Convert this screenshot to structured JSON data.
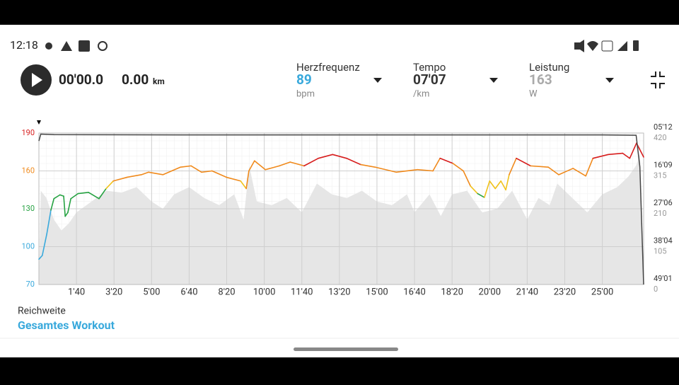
{
  "status_bar": {
    "time": "12:18"
  },
  "controls": {
    "elapsed": "00'00.0",
    "distance": "0.00",
    "distance_unit": "km"
  },
  "metrics": [
    {
      "label": "Herzfrequenz",
      "value": "89",
      "unit": "bpm"
    },
    {
      "label": "Tempo",
      "value": "07'07",
      "unit": "/km"
    },
    {
      "label": "Leistung",
      "value": "163",
      "unit": "W"
    }
  ],
  "chart_data": {
    "type": "line",
    "xlim": [
      0,
      1610
    ],
    "xticks": [
      {
        "value": 100,
        "label": "1'40"
      },
      {
        "value": 200,
        "label": "3'20"
      },
      {
        "value": 300,
        "label": "5'00"
      },
      {
        "value": 400,
        "label": "6'40"
      },
      {
        "value": 500,
        "label": "8'20"
      },
      {
        "value": 600,
        "label": "10'00"
      },
      {
        "value": 700,
        "label": "11'40"
      },
      {
        "value": 800,
        "label": "13'20"
      },
      {
        "value": 900,
        "label": "15'00"
      },
      {
        "value": 1000,
        "label": "16'40"
      },
      {
        "value": 1100,
        "label": "18'20"
      },
      {
        "value": 1200,
        "label": "20'00"
      },
      {
        "value": 1300,
        "label": "21'40"
      },
      {
        "value": 1400,
        "label": "23'20"
      },
      {
        "value": 1500,
        "label": "25'00"
      }
    ],
    "ylim": [
      70,
      190
    ],
    "yticks": [
      70,
      100,
      130,
      160,
      190
    ],
    "y2lim": [
      0,
      420
    ],
    "y2ticks": [
      0,
      105,
      210,
      315,
      420
    ],
    "y3lim": [
      2941,
      312
    ],
    "y3ticks": [
      {
        "value": 2941,
        "label": "49'01"
      },
      {
        "value": 2284,
        "label": "38'04"
      },
      {
        "value": 1626,
        "label": "27'06"
      },
      {
        "value": 969,
        "label": "16'09"
      },
      {
        "value": 312,
        "label": "05'12"
      }
    ],
    "grid": true,
    "zones": [
      {
        "from": 70,
        "color": "#39a9dc"
      },
      {
        "from": 120,
        "color": "#26a242"
      },
      {
        "from": 145,
        "color": "#f1c21b"
      },
      {
        "from": 153,
        "color": "#f08a1c"
      },
      {
        "from": 166,
        "color": "#d71d1d"
      }
    ],
    "series": [
      {
        "x": [
          0,
          9,
          21,
          32,
          40,
          56,
          66,
          70,
          77,
          85,
          104,
          132,
          160,
          179,
          198,
          235,
          273,
          292,
          330,
          377,
          405,
          433,
          461,
          499,
          537,
          552,
          559,
          574,
          603,
          640,
          669,
          706,
          744,
          782,
          819,
          857,
          895,
          951,
          1008,
          1049,
          1068,
          1102,
          1130,
          1149,
          1168,
          1186,
          1200,
          1215,
          1230,
          1243,
          1252,
          1271,
          1309,
          1356,
          1384,
          1422,
          1456,
          1475,
          1516,
          1554,
          1573,
          1591,
          1610
        ],
        "values": [
          90,
          93,
          110,
          129,
          138,
          141,
          140,
          124,
          127,
          138,
          142,
          143,
          138,
          146,
          152,
          155,
          157,
          159,
          157,
          163,
          164,
          159,
          160,
          155,
          152,
          146,
          160,
          168,
          161,
          164,
          167,
          164,
          170,
          173,
          170,
          165,
          163,
          159,
          161,
          160,
          170,
          166,
          160,
          148,
          142,
          139,
          152,
          146,
          152,
          145,
          157,
          170,
          164,
          163,
          157,
          162,
          156,
          170,
          173,
          174,
          170,
          182,
          171
        ]
      },
      {
        "axis": "y2",
        "color": "#e6e6e6",
        "x": [
          0,
          5,
          20,
          40,
          60,
          80,
          100,
          140,
          180,
          220,
          260,
          300,
          330,
          360,
          400,
          440,
          480,
          520,
          545,
          560,
          580,
          620,
          660,
          700,
          740,
          780,
          820,
          860,
          900,
          940,
          980,
          1000,
          1040,
          1070,
          1100,
          1140,
          1180,
          1220,
          1260,
          1300,
          1330,
          1360,
          1380,
          1420,
          1460,
          1500,
          1540,
          1570,
          1590,
          1600,
          1610
        ],
        "values": [
          0,
          260,
          240,
          180,
          150,
          170,
          200,
          230,
          260,
          255,
          270,
          230,
          210,
          250,
          270,
          240,
          220,
          250,
          180,
          330,
          230,
          220,
          240,
          200,
          280,
          250,
          240,
          260,
          230,
          220,
          250,
          200,
          250,
          190,
          250,
          260,
          200,
          210,
          260,
          180,
          240,
          220,
          280,
          240,
          200,
          250,
          270,
          300,
          330,
          360,
          0
        ]
      },
      {
        "axis": "y3",
        "color": "#444444",
        "x": [
          0,
          5,
          40,
          400,
          1000,
          1500,
          1590,
          1600,
          1610
        ],
        "values": [
          450,
          330,
          340,
          345,
          345,
          345,
          350,
          900,
          2941
        ]
      }
    ]
  },
  "range": {
    "label": "Reichweite",
    "value": "Gesamtes Workout"
  }
}
